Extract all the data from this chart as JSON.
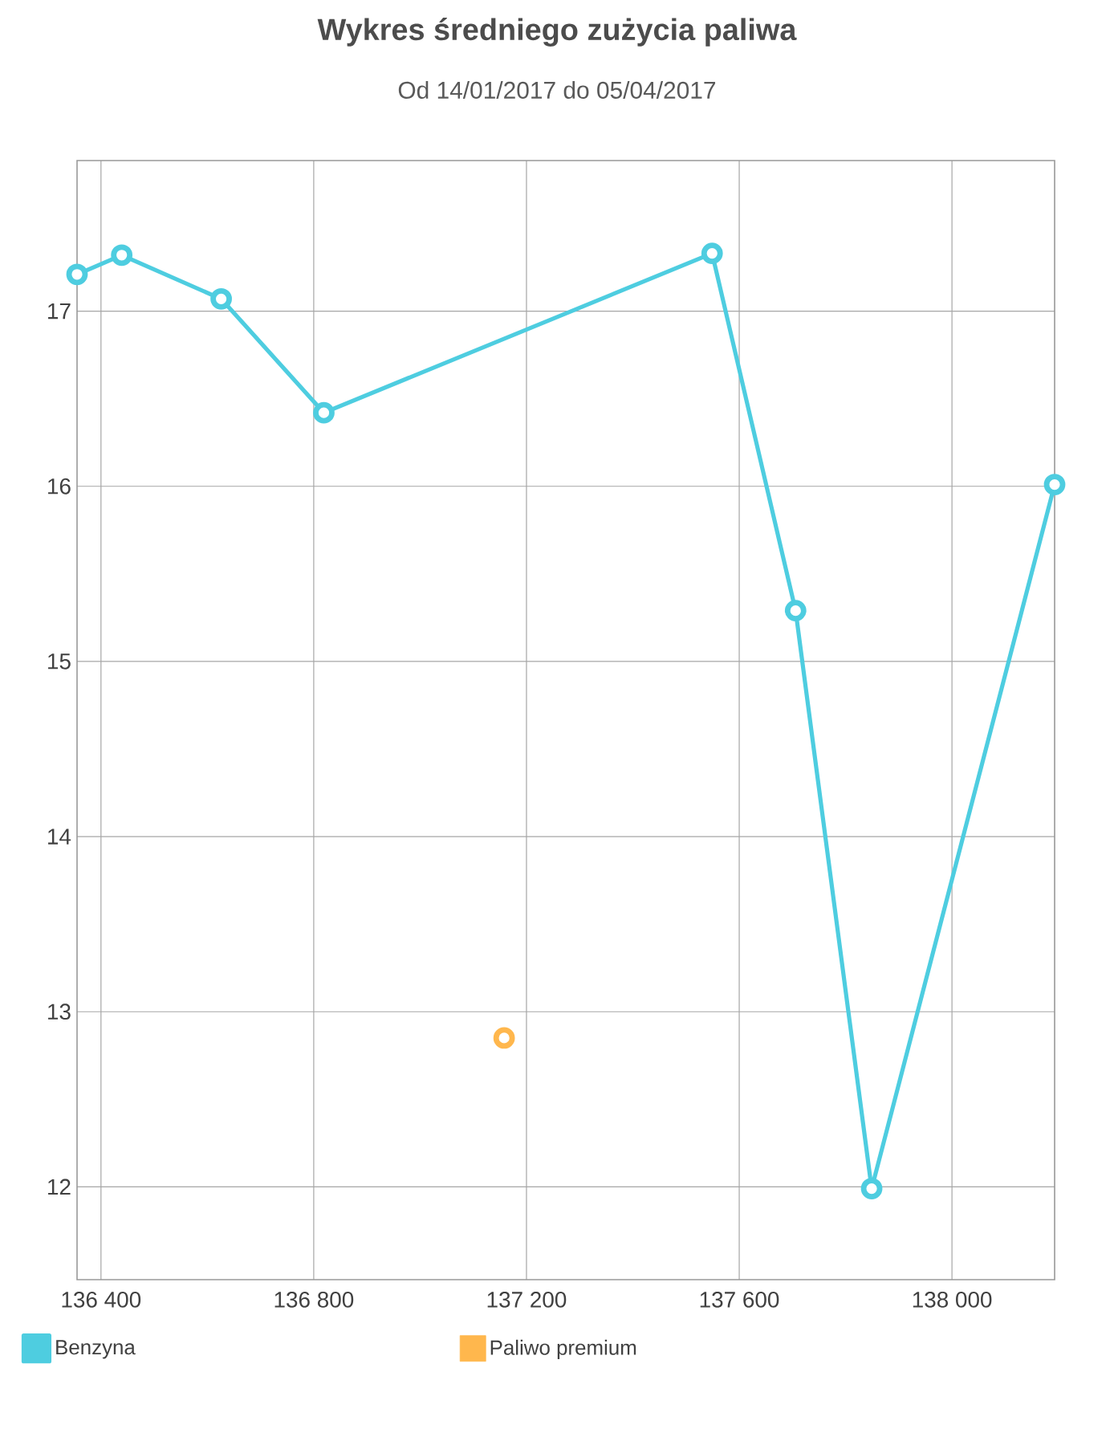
{
  "chart_data": {
    "type": "line",
    "title": "Wykres średniego zużycia paliwa",
    "subtitle": "Od 14/01/2017 do 05/04/2017",
    "xlim": [
      136355,
      138193
    ],
    "ylim": [
      11.47,
      17.86
    ],
    "xticks": [
      {
        "value": 136400,
        "label": "136 400"
      },
      {
        "value": 136800,
        "label": "136 800"
      },
      {
        "value": 137200,
        "label": "137 200"
      },
      {
        "value": 137600,
        "label": "137 600"
      },
      {
        "value": 138000,
        "label": "138 000"
      }
    ],
    "yticks": [
      12,
      13,
      14,
      15,
      16,
      17
    ],
    "grid": true,
    "legend": "bottom",
    "marker": "circle",
    "line_style": "solid",
    "series": [
      {
        "name": "Benzyna",
        "color": "#4ecde0",
        "x": [
          136355,
          136439,
          136626,
          136819,
          137549,
          137706,
          137849,
          138193
        ],
        "values": [
          17.21,
          17.32,
          17.07,
          16.42,
          17.33,
          15.29,
          11.99,
          16.01
        ]
      },
      {
        "name": "Paliwo premium",
        "color": "#ffb74d",
        "type": "scatter",
        "x": [
          137158
        ],
        "values": [
          12.85
        ]
      }
    ]
  }
}
